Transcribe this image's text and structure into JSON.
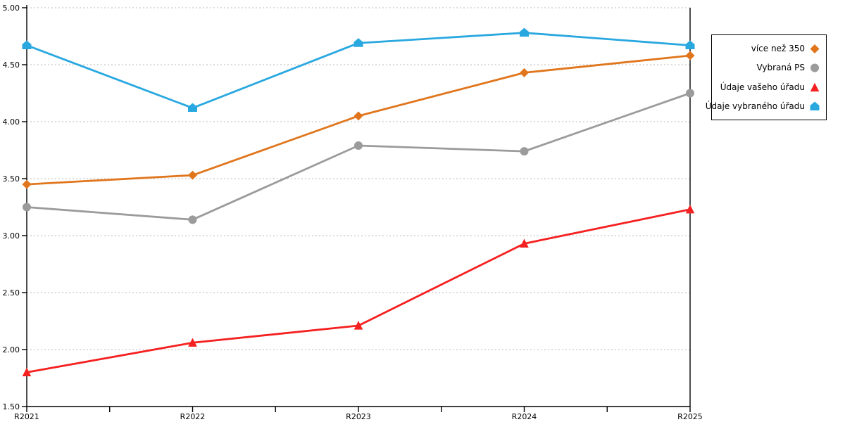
{
  "chart_data": {
    "type": "line",
    "title": "",
    "xlabel": "",
    "ylabel": "",
    "categories": [
      "R2021",
      "R2022",
      "R2023",
      "R2024",
      "R2025"
    ],
    "series": [
      {
        "name": "více než 350",
        "marker": "diamond",
        "color": "#E0751C",
        "values": [
          3.45,
          3.53,
          4.05,
          4.43,
          4.58
        ]
      },
      {
        "name": "Vybraná PS",
        "marker": "circle",
        "color": "#9B9B9B",
        "values": [
          3.25,
          3.14,
          3.79,
          3.74,
          4.25
        ]
      },
      {
        "name": "Údaje vašeho úřadu",
        "marker": "triangle",
        "color": "#F52020",
        "values": [
          1.8,
          2.06,
          2.21,
          2.93,
          3.23
        ]
      },
      {
        "name": "Údaje vybraného úřadu",
        "marker": "pentagon",
        "color": "#29A8E0",
        "values": [
          4.67,
          4.12,
          4.69,
          4.78,
          4.67
        ]
      }
    ],
    "y_axis": {
      "min": 1.5,
      "max": 5.0,
      "step": 0.5,
      "tick_labels": [
        "5.00",
        "4.50",
        "4.00",
        "3.50",
        "3.00",
        "2.50",
        "2.00",
        "1.50"
      ]
    },
    "x_axis": {
      "minor_ticks_between_categories": 1
    },
    "grid": {
      "visible": true,
      "style": "dotted",
      "color": "#C8C8C8"
    },
    "axis_color": "#000000",
    "legend": {
      "position": "right",
      "border_color": "#000000",
      "background": "#FFFFFF"
    }
  }
}
